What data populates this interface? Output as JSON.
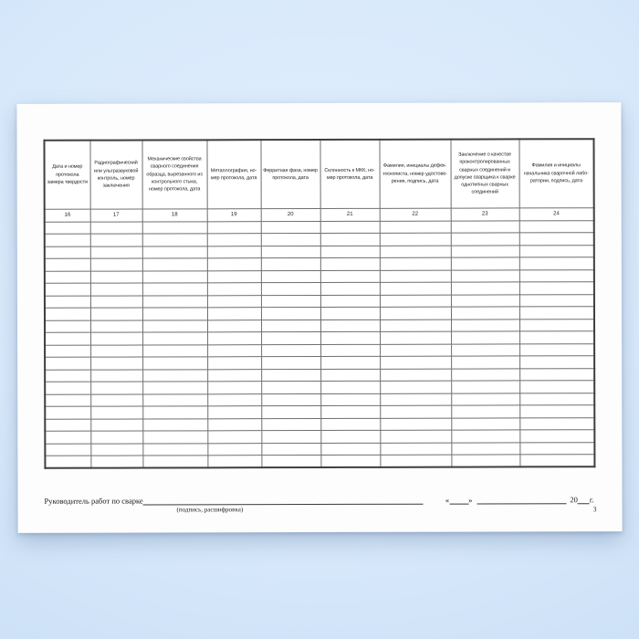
{
  "page": {
    "number": "3"
  },
  "table": {
    "columns": [
      {
        "number": "16",
        "title": "Дата и номер протокола замера твердости"
      },
      {
        "number": "17",
        "title": "Радиографический или ультразвуковой контроль, номер заключения"
      },
      {
        "number": "18",
        "title": "Механические свойства сварного соединения образца, вырезанного из контрольного стыка, номер протокола, дата"
      },
      {
        "number": "19",
        "title": "Металлография, но­мер протокола, дата"
      },
      {
        "number": "20",
        "title": "Ферритная фаза, но­мер протокола, дата"
      },
      {
        "number": "21",
        "title": "Склонность к МКК, но­мер протокола, дата"
      },
      {
        "number": "22",
        "title": "Фамилия, инициалы дефек­тоскописта, номер удостове­рения, подпись, дата"
      },
      {
        "number": "23",
        "title": "Заключение о качестве проконтролированных сварных соединений и допуске сварщика к сварке однотипных сварных соединений"
      },
      {
        "number": "24",
        "title": "Фамилия и инициалы начальника сварочной лабо­ратории, подпись, дата"
      }
    ],
    "empty_row_count": 20
  },
  "footer": {
    "leader_label": "Руководитель работ по сварке",
    "sign_hint": "(подпись, расшифровка)",
    "date_quote_open": "«",
    "date_quote_close": "»",
    "year_prefix": "20",
    "year_suffix": "г."
  },
  "colors": {
    "background_blue": "#d8e9fb",
    "paper_white": "#fdfdfe",
    "grid_line": "#6f6f6f",
    "outer_border": "#3f3f3f",
    "ink": "#1e1e1e"
  }
}
